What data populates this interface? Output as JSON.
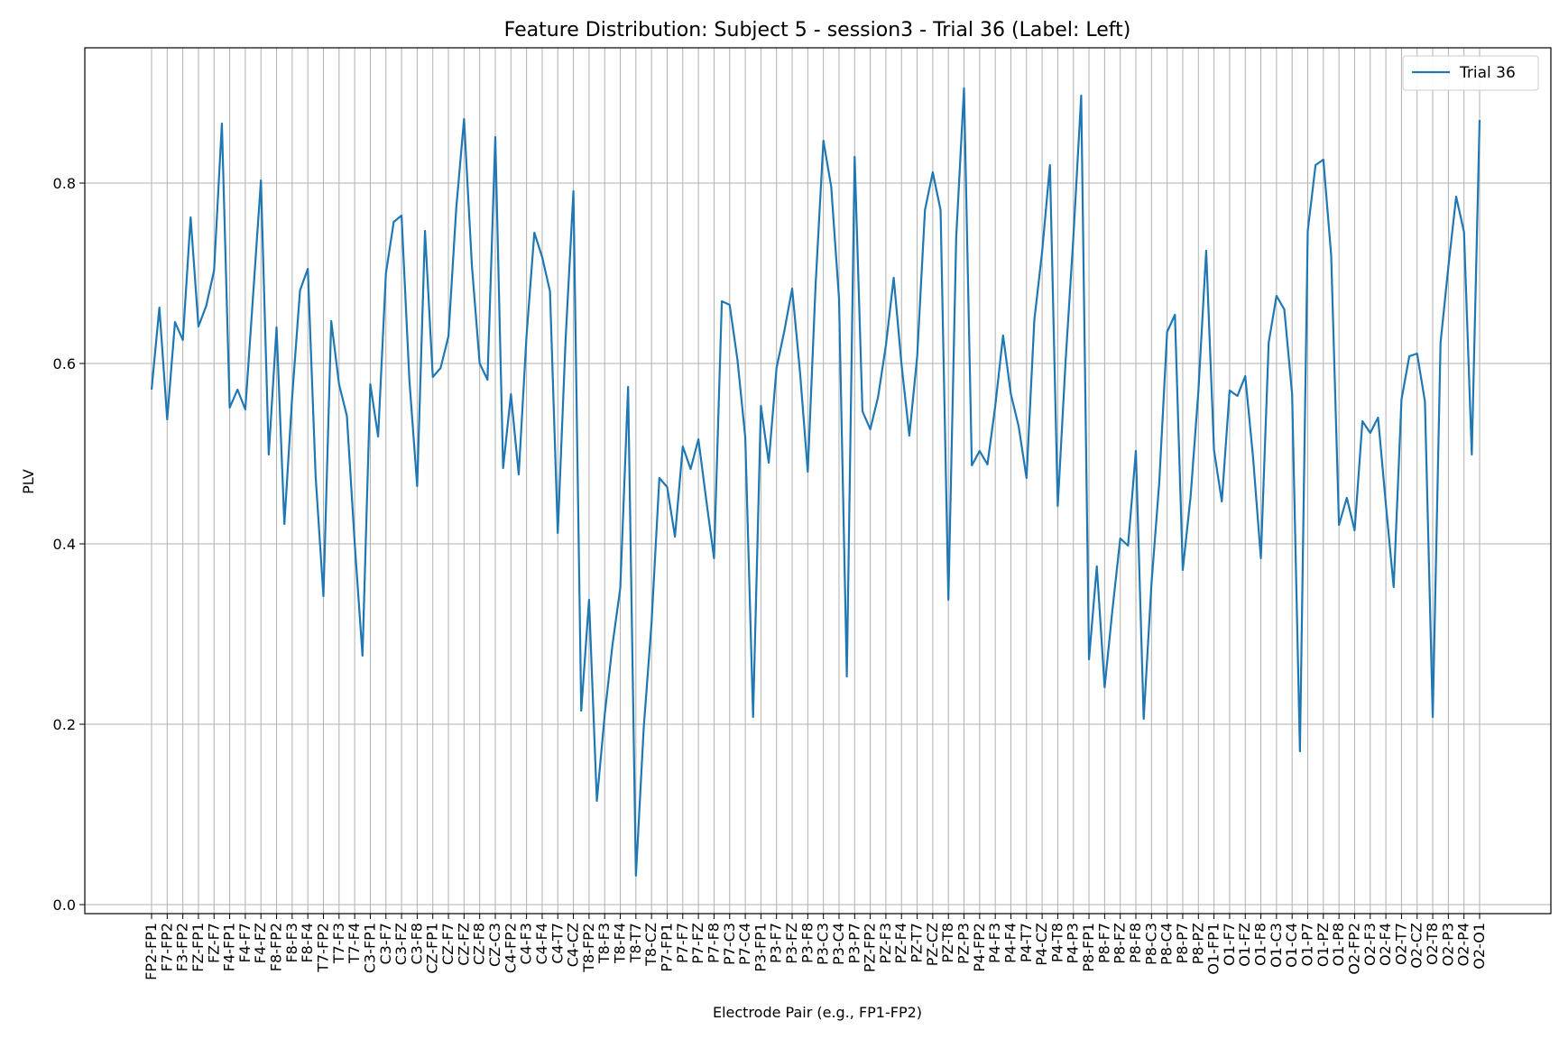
{
  "chart_data": {
    "type": "line",
    "title": "Feature Distribution: Subject 5 - session3 - Trial 36 (Label: Left)",
    "xlabel": "Electrode Pair (e.g., FP1-FP2)",
    "ylabel": "PLV",
    "ylim": [
      -0.01,
      0.95
    ],
    "yticks": [
      0.0,
      0.2,
      0.4,
      0.6,
      0.8
    ],
    "ytick_labels": [
      "0.0",
      "0.2",
      "0.4",
      "0.6",
      "0.8"
    ],
    "grid": true,
    "legend_position": "top-right",
    "x_tick_labels": [
      "FP2-FP1",
      "F7-FP2",
      "F3-FP2",
      "FZ-FP1",
      "FZ-F7",
      "F4-FP1",
      "F4-F7",
      "F4-FZ",
      "F8-FP2",
      "F8-F3",
      "F8-F4",
      "T7-FP2",
      "T7-F3",
      "T7-F4",
      "C3-FP1",
      "C3-F7",
      "C3-FZ",
      "C3-F8",
      "CZ-FP1",
      "CZ-F7",
      "CZ-FZ",
      "CZ-F8",
      "CZ-C3",
      "C4-FP2",
      "C4-F3",
      "C4-F4",
      "C4-T7",
      "C4-CZ",
      "T8-FP2",
      "T8-F3",
      "T8-F4",
      "T8-T7",
      "T8-CZ",
      "P7-FP1",
      "P7-F7",
      "P7-FZ",
      "P7-F8",
      "P7-C3",
      "P7-C4",
      "P3-FP1",
      "P3-F7",
      "P3-FZ",
      "P3-F8",
      "P3-C3",
      "P3-C4",
      "P3-P7",
      "PZ-FP2",
      "PZ-F3",
      "PZ-F4",
      "PZ-T7",
      "PZ-CZ",
      "PZ-T8",
      "PZ-P3",
      "P4-FP2",
      "P4-F3",
      "P4-F4",
      "P4-T7",
      "P4-CZ",
      "P4-T8",
      "P4-P3",
      "P8-FP1",
      "P8-F7",
      "P8-FZ",
      "P8-F8",
      "P8-C3",
      "P8-C4",
      "P8-P7",
      "P8-PZ",
      "O1-FP1",
      "O1-F7",
      "O1-FZ",
      "O1-F8",
      "O1-C3",
      "O1-C4",
      "O1-P7",
      "O1-PZ",
      "O1-P8",
      "O2-FP2",
      "O2-F3",
      "O2-F4",
      "O2-T7",
      "O2-CZ",
      "O2-T8",
      "O2-P3",
      "O2-P4",
      "O2-O1"
    ],
    "series": [
      {
        "name": "Trial 36",
        "color": "#1f77b4",
        "values": [
          0.571,
          0.662,
          0.538,
          0.646,
          0.626,
          0.762,
          0.641,
          0.664,
          0.703,
          0.866,
          0.551,
          0.571,
          0.549,
          0.676,
          0.803,
          0.499,
          0.64,
          0.422,
          0.563,
          0.681,
          0.705,
          0.475,
          0.342,
          0.647,
          0.577,
          0.542,
          0.401,
          0.276,
          0.577,
          0.519,
          0.7,
          0.757,
          0.764,
          0.582,
          0.464,
          0.747,
          0.585,
          0.595,
          0.63,
          0.772,
          0.871,
          0.709,
          0.6,
          0.582,
          0.851,
          0.484,
          0.566,
          0.477,
          0.631,
          0.745,
          0.718,
          0.68,
          0.412,
          0.627,
          0.791,
          0.215,
          0.338,
          0.115,
          0.21,
          0.288,
          0.351,
          0.574,
          0.032,
          0.196,
          0.312,
          0.473,
          0.463,
          0.408,
          0.508,
          0.483,
          0.516,
          0.449,
          0.384,
          0.669,
          0.665,
          0.604,
          0.518,
          0.208,
          0.553,
          0.49,
          0.595,
          0.636,
          0.683,
          0.591,
          0.48,
          0.687,
          0.847,
          0.796,
          0.672,
          0.253,
          0.829,
          0.547,
          0.527,
          0.563,
          0.62,
          0.695,
          0.599,
          0.52,
          0.607,
          0.77,
          0.812,
          0.77,
          0.338,
          0.74,
          0.905,
          0.487,
          0.503,
          0.488,
          0.553,
          0.631,
          0.566,
          0.53,
          0.473,
          0.648,
          0.724,
          0.82,
          0.442,
          0.602,
          0.74,
          0.897,
          0.272,
          0.375,
          0.241,
          0.327,
          0.406,
          0.398,
          0.503,
          0.206,
          0.356,
          0.469,
          0.635,
          0.654,
          0.371,
          0.452,
          0.569,
          0.725,
          0.504,
          0.447,
          0.57,
          0.564,
          0.586,
          0.496,
          0.384,
          0.623,
          0.675,
          0.66,
          0.566,
          0.17,
          0.747,
          0.82,
          0.826,
          0.72,
          0.421,
          0.451,
          0.415,
          0.536,
          0.523,
          0.54,
          0.444,
          0.352,
          0.56,
          0.608,
          0.611,
          0.558,
          0.208,
          0.623,
          0.707,
          0.785,
          0.746,
          0.499,
          0.87
        ]
      }
    ]
  }
}
